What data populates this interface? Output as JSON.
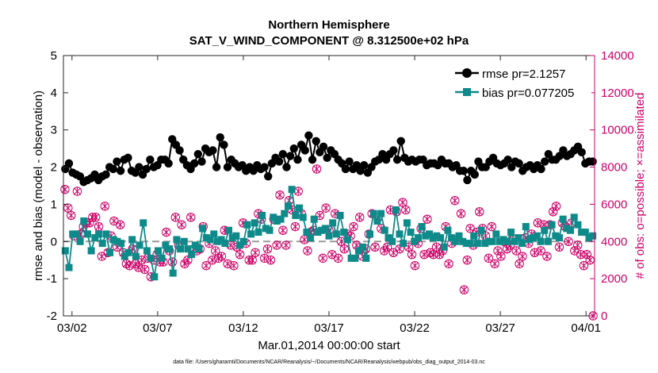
{
  "chart_data": {
    "type": "line",
    "title": "Northern Hemisphere",
    "subtitle": "SAT_V_WIND_COMPONENT @ 8.312500e+02 hPa",
    "xlabel": "Mar.01,2014 00:00:00 start",
    "ylabel_left": "rmse and bias (model - observation)",
    "ylabel_right": "# of obs: o=possible; ×=assimilated",
    "footnote": "data file: /Users/gharamti/Documents/NCAR/Reanalysis/~/Documents/NCAR/Reanalysis/webpub/obs_diag_output_2014-03.nc",
    "x_unit": "days since Mar.01,2014",
    "xlim": [
      0.5,
      31.5
    ],
    "ylim_left": [
      -2,
      5
    ],
    "ylim_right": [
      0,
      14000
    ],
    "x_ticks": [
      1,
      6,
      11,
      16,
      21,
      26,
      31
    ],
    "x_tick_labels": [
      "03/02",
      "03/07",
      "03/12",
      "03/17",
      "03/22",
      "03/27",
      "04/01"
    ],
    "y_ticks_left": [
      -2,
      -1,
      0,
      1,
      2,
      3,
      4,
      5
    ],
    "y_tick_labels_left": [
      "-2",
      "-1",
      "0",
      "1",
      "2",
      "3",
      "4",
      "5"
    ],
    "y_ticks_right": [
      0,
      2000,
      4000,
      6000,
      8000,
      10000,
      12000,
      14000
    ],
    "y_tick_labels_right": [
      "0",
      "2000",
      "4000",
      "6000",
      "8000",
      "10000",
      "12000",
      "14000"
    ],
    "legend": {
      "position": "top-right",
      "entries": [
        {
          "label": "rmse pr=2.1257",
          "series": "rmse"
        },
        {
          "label": "bias pr=0.077205",
          "series": "bias"
        }
      ]
    },
    "colors": {
      "rmse": "#000000",
      "bias": "#0f8a8a",
      "obs": "#cc0066",
      "zero_line": "#9a9a9a"
    },
    "series": [
      {
        "name": "rmse",
        "axis": "left",
        "values": [
          1.95,
          2.1,
          1.85,
          1.8,
          1.75,
          1.6,
          1.65,
          1.7,
          1.8,
          1.65,
          1.75,
          1.8,
          2.0,
          1.95,
          2.15,
          1.9,
          2.2,
          2.25,
          1.9,
          1.85,
          2.0,
          1.8,
          1.95,
          2.2,
          2.0,
          2.05,
          2.2,
          2.2,
          2.1,
          2.75,
          2.6,
          2.45,
          2.2,
          2.05,
          1.95,
          2.1,
          2.35,
          2.15,
          2.5,
          2.4,
          2.45,
          2.0,
          2.8,
          2.6,
          2.0,
          2.2,
          2.1,
          2.0,
          2.05,
          1.9,
          2.0,
          1.9,
          2.05,
          1.95,
          2.0,
          1.75,
          2.1,
          2.25,
          2.15,
          2.35,
          2.0,
          2.3,
          2.5,
          2.2,
          2.6,
          2.45,
          2.85,
          2.2,
          2.7,
          2.4,
          2.55,
          2.25,
          2.45,
          2.35,
          2.2,
          2.1,
          1.95,
          2.15,
          1.95,
          2.05,
          1.9,
          2.05,
          1.85,
          2.0,
          2.15,
          2.2,
          2.35,
          2.2,
          2.35,
          2.45,
          2.2,
          2.7,
          2.25,
          2.15,
          2.2,
          2.15,
          2.2,
          2.2,
          2.05,
          2.1,
          2.1,
          2.05,
          2.2,
          2.1,
          2.1,
          2.0,
          2.05,
          1.9,
          1.9,
          1.65,
          1.9,
          1.8,
          2.15,
          2.0,
          2.0,
          2.15,
          2.25,
          2.1,
          2.05,
          2.1,
          2.2,
          2.0,
          2.15,
          2.1,
          1.9,
          2.0,
          2.05,
          1.95,
          2.05,
          1.95,
          2.15,
          2.35,
          2.2,
          2.2,
          2.3,
          2.45,
          2.3,
          2.35,
          2.45,
          2.55,
          2.4,
          2.1,
          2.15,
          2.15
        ]
      },
      {
        "name": "bias",
        "axis": "left",
        "values": [
          -0.25,
          -0.7,
          0.2,
          0.2,
          0.0,
          0.55,
          0.2,
          -0.25,
          0.1,
          0.2,
          -0.05,
          0.2,
          -0.3,
          0.05,
          0.0,
          -0.05,
          -0.4,
          -0.3,
          0.05,
          -0.4,
          -0.1,
          0.5,
          -0.25,
          -0.45,
          -0.95,
          -0.25,
          -0.45,
          -0.1,
          -0.2,
          -0.85,
          0.05,
          -0.2,
          0.0,
          -0.2,
          -0.35,
          -0.1,
          -0.2,
          0.35,
          0.1,
          0.05,
          0.2,
          0.0,
          0.05,
          -0.05,
          0.3,
          0.1,
          0.15,
          -0.1,
          0.0,
          0.45,
          0.2,
          0.5,
          0.25,
          0.7,
          0.35,
          0.3,
          0.65,
          0.55,
          0.6,
          0.75,
          0.95,
          1.4,
          0.7,
          0.9,
          0.65,
          0.25,
          0.1,
          0.6,
          0.25,
          0.3,
          0.35,
          0.15,
          0.5,
          0.2,
          0.7,
          0.25,
          0.05,
          -0.45,
          -0.45,
          -0.25,
          -0.15,
          -0.45,
          0.2,
          0.75,
          0.55,
          0.75,
          0.3,
          0.1,
          0.0,
          0.85,
          0.2,
          -0.05,
          0.5,
          0.25,
          0.0,
          0.1,
          0.4,
          0.15,
          0.2,
          0.1,
          0.15,
          0.1,
          -0.15,
          0.3,
          0.1,
          0.0,
          0.15,
          0.0,
          -0.05,
          -0.05,
          0.15,
          -0.05,
          0.3,
          -0.05,
          0.0,
          0.0,
          0.2,
          0.0,
          0.05,
          0.0,
          0.25,
          0.0,
          0.1,
          -0.05,
          0.4,
          0.05,
          0.1,
          0.15,
          0.0,
          0.3,
          0.0,
          0.45,
          0.15,
          0.1,
          0.6,
          0.35,
          0.3,
          0.65,
          0.45,
          0.25,
          0.25,
          0.1,
          0.15
        ]
      },
      {
        "name": "obs_possible",
        "axis": "right",
        "values": [
          6800,
          5800,
          5400,
          4300,
          6700,
          4400,
          4800,
          5000,
          5000,
          5300,
          5300,
          4800,
          3200,
          5900,
          3400,
          4300,
          5100,
          3700,
          4900,
          3400,
          2800,
          2700,
          3600,
          2800,
          2600,
          3000,
          2500,
          3100,
          2100,
          3000,
          3300,
          2900,
          2900,
          4500,
          3500,
          2900,
          5300,
          3800,
          4900,
          2800,
          3000,
          5300,
          3600,
          3500,
          3600,
          4800,
          2700,
          3900,
          3000,
          3500,
          3100,
          3200,
          4600,
          2800,
          3800,
          2700,
          3700,
          3300,
          5000,
          3900,
          3000,
          3000,
          3400,
          5500,
          5200,
          3100,
          3600,
          3000,
          5200,
          3800,
          6500,
          4600,
          3800,
          6200,
          5700,
          4800,
          6700,
          5500,
          4100,
          3500,
          4500,
          4600,
          7900,
          5400,
          3100,
          5800,
          4600,
          3300,
          5500,
          3100,
          4000,
          3600,
          4400,
          4300,
          4800,
          3800,
          5300,
          3200,
          3600,
          4400,
          5500,
          3700,
          5300,
          4700,
          3500,
          3700,
          5700,
          3400,
          5600,
          3600,
          6100,
          5700,
          3700,
          3300,
          2700,
          3900,
          4700,
          3300,
          5200,
          3400,
          3300,
          3700,
          3300,
          3500,
          4800,
          2800,
          3900,
          6200,
          4100,
          5500,
          1400,
          3000,
          4700,
          3800,
          4500,
          5600,
          4700,
          4300,
          3100,
          4800,
          2800,
          3500,
          3200,
          4000,
          3600,
          3800,
          4100,
          3500,
          2800,
          3200,
          4200,
          3900,
          4400,
          3400,
          5000,
          3500,
          4900,
          3200,
          4900,
          5600,
          5900,
          3700,
          5000,
          4800,
          4000,
          5000,
          3500,
          3800,
          3300,
          2700,
          3300,
          3000,
          0
        ]
      },
      {
        "name": "obs_assimilated",
        "axis": "right",
        "values": [
          6800,
          5800,
          5400,
          4300,
          6700,
          4400,
          4800,
          5000,
          5000,
          5300,
          5300,
          4800,
          3200,
          5900,
          3400,
          4300,
          5100,
          3700,
          4900,
          3400,
          2800,
          2700,
          3600,
          2800,
          2600,
          3000,
          2500,
          3100,
          2100,
          3000,
          3300,
          2900,
          2900,
          4500,
          3500,
          2900,
          5300,
          3800,
          4900,
          2800,
          3000,
          5300,
          3600,
          3500,
          3600,
          4800,
          2700,
          3900,
          3000,
          3500,
          3100,
          3200,
          4600,
          2800,
          3800,
          2700,
          3700,
          3300,
          5000,
          3900,
          3000,
          3000,
          3400,
          5500,
          5200,
          3100,
          3600,
          3000,
          5200,
          3800,
          6500,
          4600,
          3800,
          6200,
          5700,
          4800,
          6700,
          5500,
          4100,
          3500,
          4500,
          4600,
          7900,
          5400,
          3100,
          5800,
          4600,
          3300,
          5500,
          3100,
          4000,
          3600,
          4400,
          4300,
          4800,
          3800,
          5300,
          3200,
          3600,
          4400,
          5500,
          3700,
          5300,
          4700,
          3500,
          3700,
          5700,
          3400,
          5600,
          3600,
          6100,
          5700,
          3700,
          3300,
          2700,
          3900,
          4700,
          3300,
          5200,
          3400,
          3300,
          3700,
          3300,
          3500,
          4800,
          2800,
          3900,
          6200,
          4100,
          5500,
          1400,
          3000,
          4700,
          3800,
          4500,
          5600,
          4700,
          4300,
          3100,
          4800,
          2800,
          3500,
          3200,
          4000,
          3600,
          3800,
          4100,
          3500,
          2800,
          3200,
          4200,
          3900,
          4400,
          3400,
          5000,
          3500,
          4900,
          3200,
          4900,
          5600,
          5900,
          3700,
          5000,
          4800,
          4000,
          5000,
          3500,
          3800,
          3300,
          2700,
          3300,
          3000,
          0
        ]
      }
    ]
  }
}
